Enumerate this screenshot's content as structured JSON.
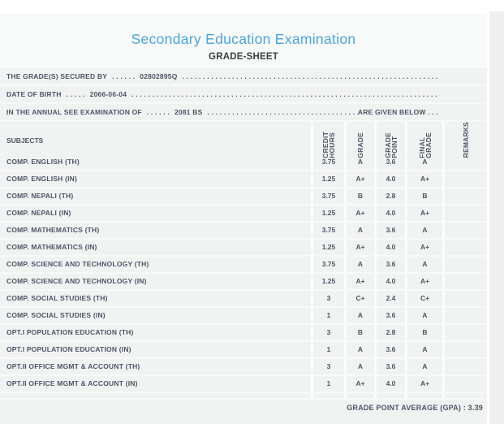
{
  "page": {
    "title": "Secondary Education Examination",
    "subtitle": "GRADE-SHEET",
    "accent_color": "#4aa5df",
    "text_color": "#4d5663",
    "panel_bg": "#f8f9f9",
    "row_bg": "#f1f2f2"
  },
  "info": {
    "lines": [
      {
        "label": "THE GRADE(S) SECURED BY",
        "pre_dots": ". . . . . .",
        "value": "02802895Q",
        "leader": ". . . . . . . . . . . . . . . . . . . . . . . . . . . . . . . . . . . . . . . . . . . . . . . . . . . . . . . . . . . . . . . . . . . . . . . . . . . .",
        "trailer": ""
      },
      {
        "label": "DATE OF BIRTH",
        "pre_dots": ". . . . .",
        "value": "2066-06-04",
        "leader": ". . . . . . . . . . . . . . . . . . . . . . . . . . . . . . . . . . . . . . . . . . . . . . . . . . . . . . . . . . . . . . . . . . . . . . . . . . . .",
        "trailer": ""
      },
      {
        "label": "IN THE ANNUAL SEE EXAMINATION OF",
        "pre_dots": ". . . . . .",
        "value": "2081 BS",
        "leader": ". . . . . . . . . . . . . . . . . . . . . . . . . . . . . . . . . . . . . . . . . . . . . . . . . . . . . . . . . . . . . . . . . . . . . . . . . . . .",
        "trailer": "ARE GIVEN BELOW . . ."
      }
    ]
  },
  "table": {
    "columns": [
      "SUBJECTS",
      "CREDIT\nHOURS",
      "GRADE",
      "GRADE\nPOINT",
      "FINAL\nGRADE",
      "REMARKS"
    ],
    "rows": [
      [
        "COMP. ENGLISH (TH)",
        "3.75",
        "A",
        "3.6",
        "A",
        ""
      ],
      [
        "COMP. ENGLISH (IN)",
        "1.25",
        "A+",
        "4.0",
        "A+",
        ""
      ],
      [
        "COMP. NEPALI (TH)",
        "3.75",
        "B",
        "2.8",
        "B",
        ""
      ],
      [
        "COMP. NEPALI (IN)",
        "1.25",
        "A+",
        "4.0",
        "A+",
        ""
      ],
      [
        "COMP. MATHEMATICS (TH)",
        "3.75",
        "A",
        "3.6",
        "A",
        ""
      ],
      [
        "COMP. MATHEMATICS (IN)",
        "1.25",
        "A+",
        "4.0",
        "A+",
        ""
      ],
      [
        "COMP. SCIENCE AND TECHNOLOGY (TH)",
        "3.75",
        "A",
        "3.6",
        "A",
        ""
      ],
      [
        "COMP. SCIENCE AND TECHNOLOGY (IN)",
        "1.25",
        "A+",
        "4.0",
        "A+",
        ""
      ],
      [
        "COMP. SOCIAL STUDIES (TH)",
        "3",
        "C+",
        "2.4",
        "C+",
        ""
      ],
      [
        "COMP. SOCIAL STUDIES (IN)",
        "1",
        "A",
        "3.6",
        "A",
        ""
      ],
      [
        "OPT.I POPULATION EDUCATION (TH)",
        "3",
        "B",
        "2.8",
        "B",
        ""
      ],
      [
        "OPT.I POPULATION EDUCATION (IN)",
        "1",
        "A",
        "3.6",
        "A",
        ""
      ],
      [
        "OPT.II OFFICE MGMT & ACCOUNT (TH)",
        "3",
        "A",
        "3.6",
        "A",
        ""
      ],
      [
        "OPT.II OFFICE MGMT & ACCOUNT (IN)",
        "1",
        "A+",
        "4.0",
        "A+",
        ""
      ]
    ]
  },
  "footer": {
    "gpa_text": "GRADE POINT AVERAGE (GPA) : 3.39"
  }
}
